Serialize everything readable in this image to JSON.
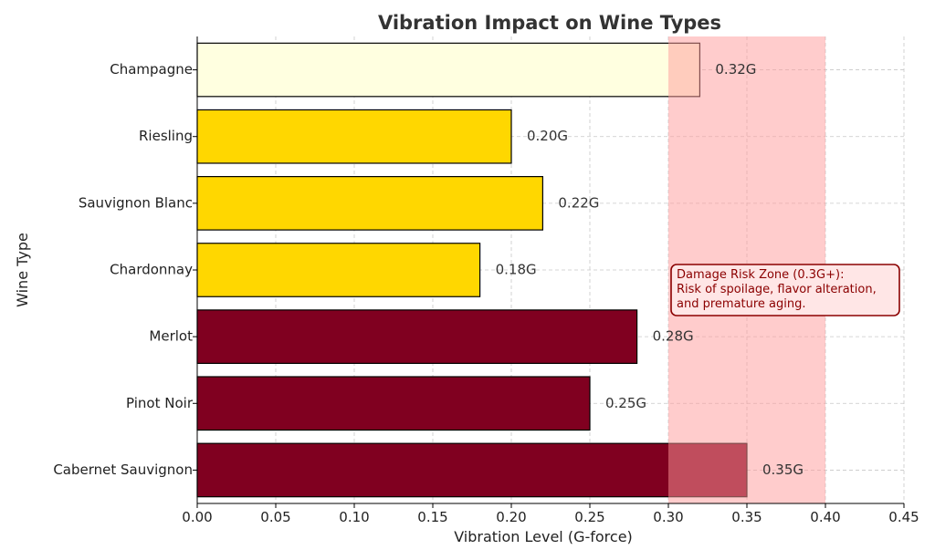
{
  "chart_data": {
    "type": "bar",
    "orientation": "horizontal",
    "title": "Vibration Impact on Wine Types",
    "xlabel": "Vibration Level (G-force)",
    "ylabel": "Wine Type",
    "xlim": [
      0,
      0.45
    ],
    "xticks": [
      "0.00",
      "0.05",
      "0.10",
      "0.15",
      "0.20",
      "0.25",
      "0.30",
      "0.35",
      "0.40",
      "0.45"
    ],
    "grid": true,
    "categories": [
      "Champagne",
      "Riesling",
      "Sauvignon Blanc",
      "Chardonnay",
      "Merlot",
      "Pinot Noir",
      "Cabernet Sauvignon"
    ],
    "values": [
      0.32,
      0.2,
      0.22,
      0.18,
      0.28,
      0.25,
      0.35
    ],
    "value_labels": [
      "0.32G",
      "0.20G",
      "0.22G",
      "0.18G",
      "0.28G",
      "0.25G",
      "0.35G"
    ],
    "bar_colors": [
      "#FFFFE0",
      "#FFD700",
      "#FFD700",
      "#FFD700",
      "#800020",
      "#800020",
      "#800020"
    ],
    "risk_zone": {
      "range": [
        0.3,
        0.4
      ],
      "color": "#FF9999",
      "annotation": [
        "Damage Risk Zone (0.3G+):",
        "Risk of spoilage, flavor alteration,",
        "and premature aging."
      ],
      "text_color": "#8B0000"
    }
  }
}
